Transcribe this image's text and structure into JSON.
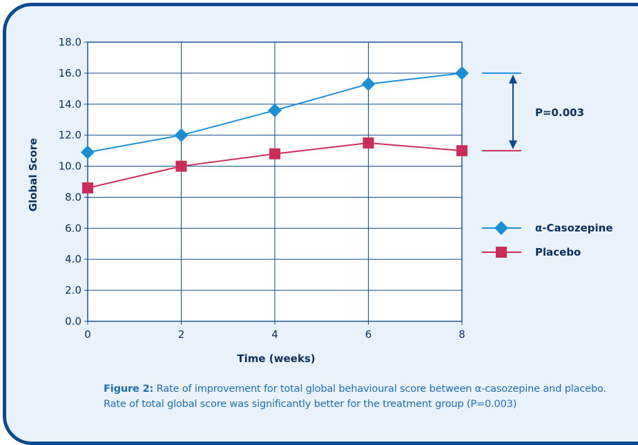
{
  "chart_data": {
    "type": "line",
    "title": "",
    "xlabel": "Time (weeks)",
    "ylabel": "Global Score",
    "x": [
      0,
      2,
      4,
      6,
      8
    ],
    "xlim": [
      0,
      8
    ],
    "ylim": [
      0,
      18
    ],
    "xticks": [
      "0",
      "2",
      "4",
      "6",
      "8"
    ],
    "yticks": [
      "0.0",
      "2.0",
      "4.0",
      "6.0",
      "8.0",
      "10.0",
      "12.0",
      "14.0",
      "16.0",
      "18.0"
    ],
    "grid": true,
    "legend_position": "right",
    "series": [
      {
        "name": "α-Casozepine",
        "values": [
          10.9,
          12.0,
          13.6,
          15.3,
          16.0
        ],
        "marker": "diamond",
        "color": "#1b8fd6"
      },
      {
        "name": "Placebo",
        "values": [
          8.6,
          10.0,
          10.8,
          11.5,
          11.0
        ],
        "marker": "square",
        "color": "#cc2c5a"
      }
    ],
    "annotation": {
      "text": "P=0.003",
      "from_series": 0,
      "to_series": 1,
      "at_x": 8
    }
  },
  "caption": {
    "label": "Figure 2:",
    "text": " Rate of improvement for total global behavioural score between α-casozepine and placebo. Rate of total global score was significantly better for the treatment group (P=0.003)"
  },
  "colors": {
    "axis": "#0b4a8f",
    "text": "#0b2f5e",
    "caption": "#1f6fb6",
    "annotation_arrow": "#0b4a8f"
  }
}
